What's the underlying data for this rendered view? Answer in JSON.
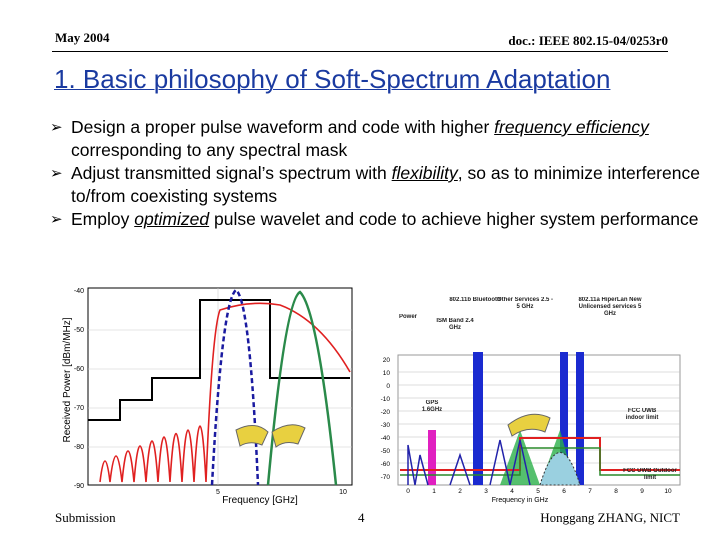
{
  "header": {
    "date": "May 2004",
    "doc": "doc.: IEEE 802.15-04/0253r0"
  },
  "title": "1. Basic philosophy of Soft-Spectrum Adaptation",
  "bullets": [
    [
      {
        "text": "Design a proper pulse waveform and code with higher "
      },
      {
        "text": "frequency efficiency",
        "em": true
      },
      {
        "text": " corresponding to any spectral mask"
      }
    ],
    [
      {
        "text": "Adjust transmitted signal’s spectrum with "
      },
      {
        "text": "flexibility",
        "em": true
      },
      {
        "text": ", so as to minimize interference to/from coexisting systems"
      }
    ],
    [
      {
        "text": "Employ "
      },
      {
        "text": "optimized",
        "em": true
      },
      {
        "text": " pulse wavelet and code to achieve higher system performance"
      }
    ]
  ],
  "figure_left": {
    "ylabel": "Received Power [dBm/MHz]",
    "xlabel": "Frequency [GHz]",
    "yticks": [
      "-40",
      "-50",
      "-60",
      "-70",
      "-80",
      "-90"
    ],
    "xticks": [
      "5",
      "10"
    ]
  },
  "figure_right": {
    "labels": [
      "802.11b Bluetooth",
      "Other Services 2.5 - 5 GHz",
      "802.11a HiperLan New Unlicensed services 5 GHz",
      "Power",
      "ISM Band 2.4 GHz",
      "GPS 1.6GHz",
      "FCC UWB indoor limit",
      "FCC UWB Outdoor limit"
    ],
    "xlabel": "Frequency in GHz",
    "yticks": [
      "20",
      "10",
      "0",
      "-10",
      "-20",
      "-30",
      "-40",
      "-50",
      "-60",
      "-70"
    ],
    "xticks": [
      "0",
      "1",
      "2",
      "3",
      "4",
      "5",
      "6",
      "7",
      "8",
      "9",
      "10"
    ]
  },
  "footer": {
    "left": "Submission",
    "page": "4",
    "author": "Honggang ZHANG, NICT"
  }
}
